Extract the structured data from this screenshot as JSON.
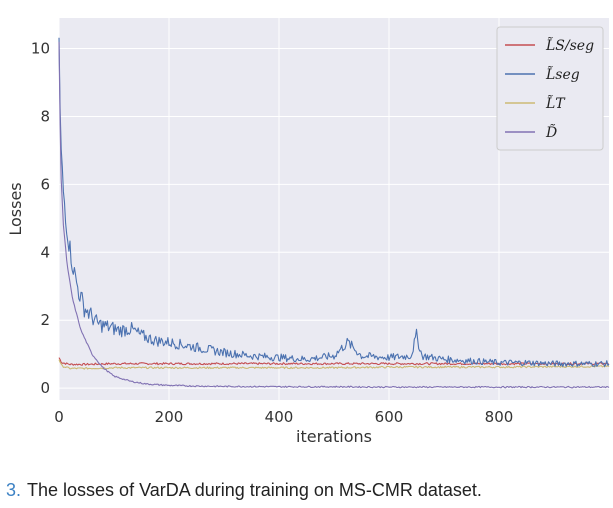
{
  "chart_data": {
    "type": "line",
    "xlabel": "iterations",
    "ylabel": "Losses",
    "xlim": [
      0,
      1000
    ],
    "ylim": [
      -0.35,
      10.9
    ],
    "xticks": [
      0,
      200,
      400,
      600,
      800
    ],
    "yticks": [
      0,
      2,
      4,
      6,
      8,
      10
    ],
    "grid": true,
    "legend_position": "top-right",
    "series": [
      {
        "name": "L̃S/seg",
        "color": "#c44e52",
        "x": [
          0,
          5,
          20,
          50,
          100,
          200,
          300,
          400,
          500,
          600,
          700,
          800,
          900,
          1000
        ],
        "y": [
          0.9,
          0.75,
          0.7,
          0.7,
          0.72,
          0.72,
          0.72,
          0.72,
          0.72,
          0.72,
          0.72,
          0.72,
          0.72,
          0.72
        ]
      },
      {
        "name": "L̃seg",
        "color": "#4c72b0",
        "x": [
          0,
          3,
          8,
          15,
          25,
          35,
          45,
          55,
          70,
          90,
          110,
          130,
          150,
          175,
          200,
          250,
          300,
          350,
          400,
          450,
          500,
          525,
          550,
          600,
          640,
          650,
          660,
          700,
          750,
          800,
          850,
          900,
          950,
          1000
        ],
        "y": [
          10.2,
          7.2,
          5.8,
          4.6,
          3.6,
          2.9,
          2.4,
          2.2,
          1.9,
          1.8,
          1.7,
          1.75,
          1.55,
          1.4,
          1.35,
          1.2,
          1.05,
          0.95,
          0.9,
          0.85,
          0.95,
          1.35,
          0.95,
          0.9,
          0.95,
          1.55,
          0.95,
          0.85,
          0.8,
          0.75,
          0.75,
          0.72,
          0.72,
          0.72
        ]
      },
      {
        "name": "L̃T",
        "color": "#ccb974",
        "x": [
          0,
          5,
          20,
          50,
          100,
          200,
          300,
          400,
          500,
          600,
          700,
          800,
          900,
          1000
        ],
        "y": [
          0.85,
          0.65,
          0.58,
          0.58,
          0.6,
          0.6,
          0.6,
          0.6,
          0.6,
          0.62,
          0.62,
          0.62,
          0.63,
          0.64
        ]
      },
      {
        "name": "D̃",
        "color": "#8172b3",
        "x": [
          0,
          3,
          8,
          15,
          25,
          40,
          60,
          80,
          100,
          130,
          160,
          200,
          250,
          300,
          400,
          500,
          600,
          700,
          800,
          900,
          1000
        ],
        "y": [
          10.2,
          6.5,
          4.8,
          3.6,
          2.6,
          1.7,
          1.0,
          0.6,
          0.35,
          0.2,
          0.12,
          0.08,
          0.06,
          0.05,
          0.04,
          0.04,
          0.03,
          0.03,
          0.03,
          0.03,
          0.03
        ]
      }
    ]
  },
  "caption": {
    "number": "3.",
    "text": "The losses of VarDA during training on MS-CMR dataset."
  }
}
